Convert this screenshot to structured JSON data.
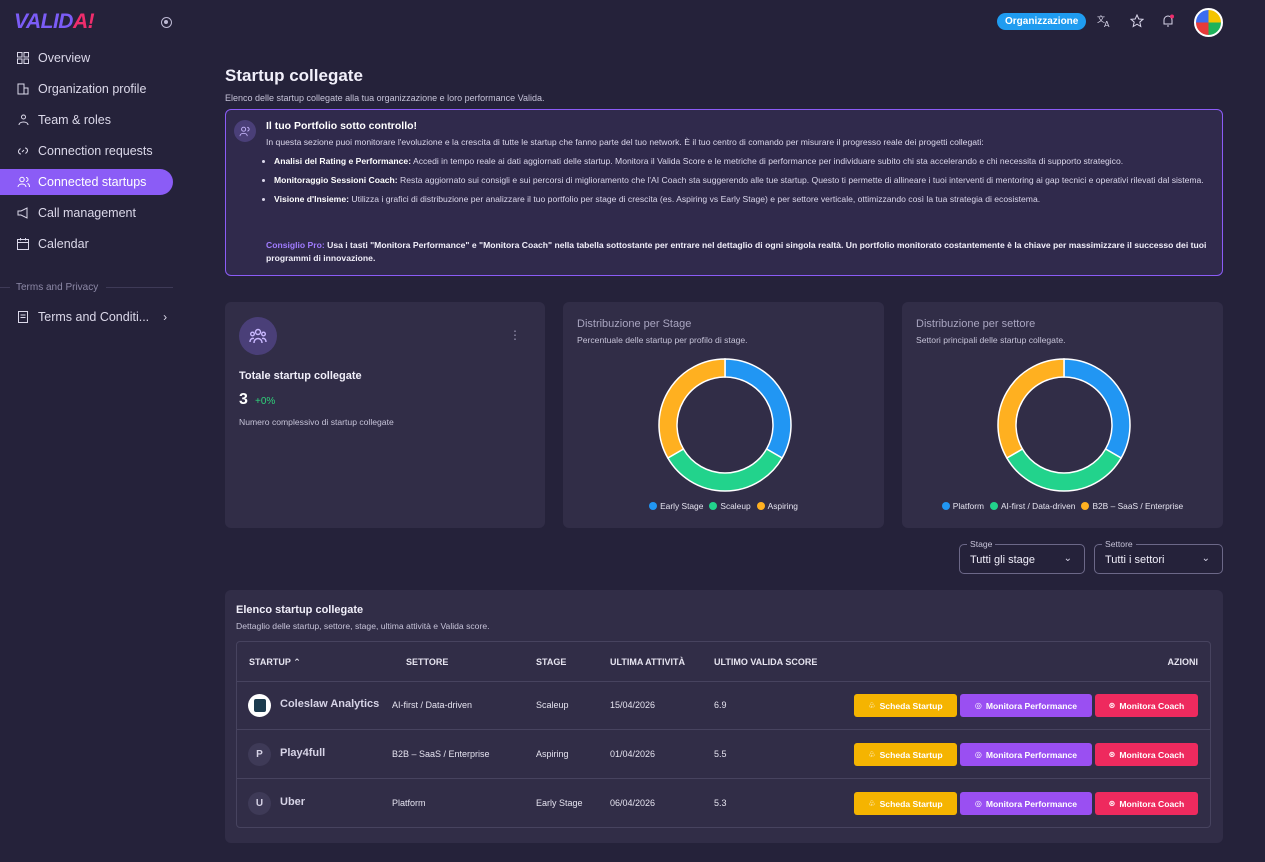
{
  "app": {
    "logo_text": "VALID",
    "logo_mark": "A!"
  },
  "sidebar": {
    "items": [
      {
        "label": "Overview",
        "icon": "grid-icon"
      },
      {
        "label": "Organization profile",
        "icon": "building-icon"
      },
      {
        "label": "Team & roles",
        "icon": "team-icon"
      },
      {
        "label": "Connection requests",
        "icon": "link-icon"
      },
      {
        "label": "Connected startups",
        "icon": "users-icon",
        "active": true
      },
      {
        "label": "Call management",
        "icon": "megaphone-icon"
      },
      {
        "label": "Calendar",
        "icon": "calendar-icon"
      }
    ],
    "section_label": "Terms and Privacy",
    "terms_item": {
      "label": "Terms and Conditi...",
      "icon": "document-icon"
    }
  },
  "topbar": {
    "org_label": "Organizzazione"
  },
  "page": {
    "title": "Startup collegate",
    "subtitle": "Elenco delle startup collegate alla tua organizzazione e loro performance Valida."
  },
  "info": {
    "title": "Il tuo Portfolio sotto controllo!",
    "intro": "In questa sezione puoi monitorare l'evoluzione e la crescita di tutte le startup che fanno parte del tuo network. È il tuo centro di comando per misurare il progresso reale dei progetti collegati:",
    "bullets": [
      {
        "head": "Analisi del Rating e Performance:",
        "text": " Accedi in tempo reale ai dati aggiornati delle startup. Monitora il Valida Score e le metriche di performance per individuare subito chi sta accelerando e chi necessita di supporto strategico."
      },
      {
        "head": "Monitoraggio Sessioni Coach:",
        "text": " Resta aggiornato sui consigli e sui percorsi di miglioramento che l'AI Coach sta suggerendo alle tue startup. Questo ti permette di allineare i tuoi interventi di mentoring ai gap tecnici e operativi rilevati dal sistema."
      },
      {
        "head": "Visione d'Insieme:",
        "text": " Utilizza i grafici di distribuzione per analizzare il tuo portfolio per stage di crescita (es. Aspiring vs Early Stage) e per settore verticale, ottimizzando così la tua strategia di ecosistema."
      }
    ],
    "pro_label": "Consiglio Pro:",
    "pro_text": " Usa i tasti \"Monitora Performance\" e \"Monitora Coach\" nella tabella sottostante per entrare nel dettaglio di ogni singola realtà. Un portfolio monitorato costantemente è la chiave per massimizzare il successo dei tuoi programmi di innovazione."
  },
  "kpi": {
    "title": "Totale startup collegate",
    "value": "3",
    "delta": "+0%",
    "description": "Numero complessivo di startup collegate"
  },
  "chart_data": [
    {
      "type": "pie",
      "title": "Distribuzione per Stage",
      "subtitle": "Percentuale delle startup per profilo di stage.",
      "categories": [
        "Early Stage",
        "Scaleup",
        "Aspiring"
      ],
      "values": [
        1,
        1,
        1
      ],
      "colors": [
        "#2196f3",
        "#22d38c",
        "#ffb020"
      ],
      "legend": "bottom"
    },
    {
      "type": "pie",
      "title": "Distribuzione per settore",
      "subtitle": "Settori principali delle startup collegate.",
      "categories": [
        "Platform",
        "AI-first / Data-driven",
        "B2B – SaaS / Enterprise"
      ],
      "values": [
        1,
        1,
        1
      ],
      "colors": [
        "#2196f3",
        "#22d38c",
        "#ffb020"
      ],
      "legend": "bottom"
    }
  ],
  "filters": {
    "stage": {
      "label": "Stage",
      "value": "Tutti gli stage"
    },
    "sector": {
      "label": "Settore",
      "value": "Tutti i settori"
    }
  },
  "table": {
    "title": "Elenco startup collegate",
    "subtitle": "Dettaglio delle startup, settore, stage, ultima attività e Valida score.",
    "headers": {
      "startup": "STARTUP",
      "sector": "SETTORE",
      "stage": "STAGE",
      "activity": "ULTIMA ATTIVITÀ",
      "score": "ULTIMO VALIDA SCORE",
      "actions": "AZIONI"
    },
    "actions": {
      "sheet": "Scheda Startup",
      "performance": "Monitora Performance",
      "coach": "Monitora Coach"
    },
    "rows": [
      {
        "name": "Coleslaw Analytics",
        "initial": "",
        "sector": "AI-first / Data-driven",
        "stage": "Scaleup",
        "activity": "15/04/2026",
        "score": "6.9"
      },
      {
        "name": "Play4full",
        "initial": "P",
        "sector": "B2B – SaaS / Enterprise",
        "stage": "Aspiring",
        "activity": "01/04/2026",
        "score": "5.5"
      },
      {
        "name": "Uber",
        "initial": "U",
        "sector": "Platform",
        "stage": "Early Stage",
        "activity": "06/04/2026",
        "score": "5.3"
      }
    ]
  }
}
